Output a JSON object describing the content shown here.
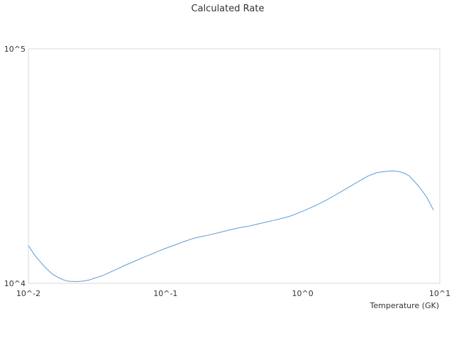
{
  "chart_data": {
    "type": "line",
    "title": "Calculated Rate",
    "xlabel": "Temperature (GK)",
    "ylabel": "",
    "x_scale": "log",
    "y_scale": "log",
    "xlim": [
      0.01,
      10
    ],
    "ylim": [
      10000,
      100000
    ],
    "x_tick_labels": [
      "10^-2",
      "10^-1",
      "10^0",
      "10^1"
    ],
    "y_tick_labels": [
      "10^4",
      "10^5"
    ],
    "grid": false,
    "legend": "none",
    "series": [
      {
        "color": "#5b9bd5",
        "x": [
          0.01,
          0.011,
          0.012,
          0.013,
          0.014,
          0.015,
          0.016,
          0.017,
          0.018,
          0.019,
          0.02,
          0.022,
          0.024,
          0.026,
          0.028,
          0.03,
          0.035,
          0.04,
          0.045,
          0.05,
          0.06,
          0.07,
          0.08,
          0.09,
          0.1,
          0.12,
          0.14,
          0.16,
          0.18,
          0.2,
          0.25,
          0.3,
          0.35,
          0.4,
          0.45,
          0.5,
          0.6,
          0.7,
          0.8,
          0.9,
          1.0,
          1.25,
          1.5,
          1.75,
          2.0,
          2.5,
          3.0,
          3.5,
          4.0,
          4.5,
          5.0,
          5.5,
          6.0,
          7.0,
          8.0,
          9.0
        ],
        "y": [
          14500,
          13300,
          12500,
          11850,
          11350,
          10950,
          10700,
          10500,
          10350,
          10250,
          10200,
          10180,
          10200,
          10250,
          10350,
          10500,
          10800,
          11200,
          11550,
          11900,
          12450,
          12950,
          13350,
          13750,
          14100,
          14650,
          15150,
          15550,
          15800,
          16000,
          16500,
          16950,
          17300,
          17500,
          17800,
          18050,
          18500,
          18900,
          19300,
          19800,
          20300,
          21500,
          22700,
          23900,
          25000,
          27000,
          28700,
          29700,
          30000,
          30200,
          30000,
          29500,
          28700,
          26000,
          23400,
          20500
        ]
      }
    ]
  }
}
